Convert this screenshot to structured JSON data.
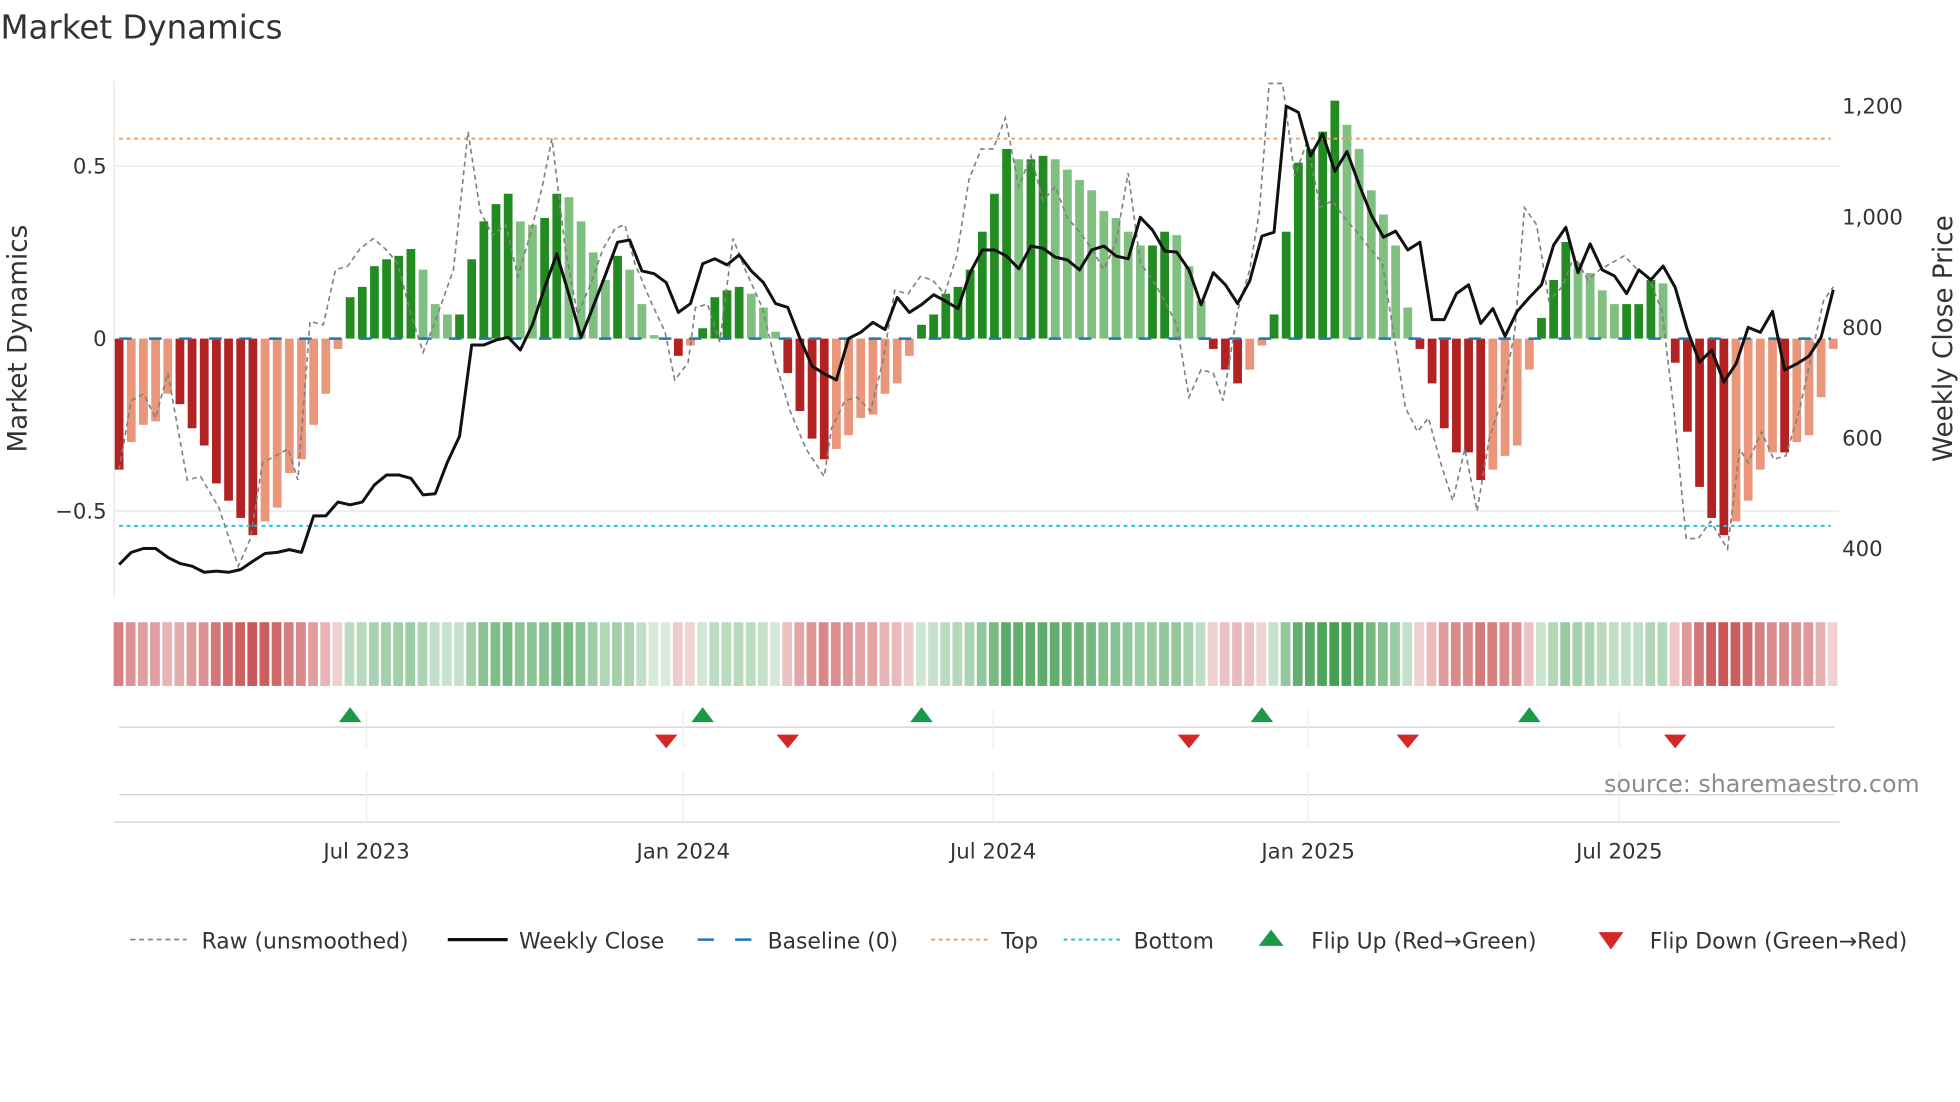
{
  "chart_data": {
    "type": "bar",
    "title": "Market Dynamics",
    "ylabel": "Market Dynamics",
    "y2label": "Weekly Close Price",
    "ylim": [
      -0.76,
      0.75
    ],
    "y2lim": [
      370,
      1240
    ],
    "yticks": [
      {
        "v": 0.5,
        "label": "0.5"
      },
      {
        "v": 0,
        "label": "0"
      },
      {
        "v": -0.5,
        "label": "−0.5"
      }
    ],
    "y2ticks": [
      {
        "v": 400,
        "label": "400"
      },
      {
        "v": 600,
        "label": "600"
      },
      {
        "v": 800,
        "label": "800"
      },
      {
        "v": 1000,
        "label": "1,000"
      },
      {
        "v": 1200,
        "label": "1,200"
      }
    ],
    "xticks": [
      {
        "week": 20.35,
        "label": "Jul 2023"
      },
      {
        "week": 46.4,
        "label": "Jan 2024"
      },
      {
        "week": 71.9,
        "label": "Jul 2024"
      },
      {
        "week": 97.8,
        "label": "Jan 2025"
      },
      {
        "week": 123.4,
        "label": "Jul 2025"
      }
    ],
    "baseline": 0,
    "top": 0.58,
    "bottom": -0.543,
    "values": [
      -0.38,
      -0.3,
      -0.25,
      -0.24,
      -0.16,
      -0.19,
      -0.26,
      -0.31,
      -0.42,
      -0.47,
      -0.52,
      -0.57,
      -0.53,
      -0.49,
      -0.39,
      -0.35,
      -0.25,
      -0.16,
      -0.03,
      0.12,
      0.15,
      0.21,
      0.23,
      0.24,
      0.26,
      0.2,
      0.1,
      0.07,
      0.07,
      0.23,
      0.34,
      0.39,
      0.42,
      0.34,
      0.33,
      0.35,
      0.42,
      0.41,
      0.34,
      0.25,
      0.17,
      0.24,
      0.2,
      0.1,
      0.01,
      0.0,
      -0.05,
      -0.02,
      0.03,
      0.12,
      0.14,
      0.15,
      0.13,
      0.09,
      0.02,
      -0.1,
      -0.21,
      -0.29,
      -0.35,
      -0.32,
      -0.28,
      -0.23,
      -0.22,
      -0.16,
      -0.13,
      -0.05,
      0.04,
      0.07,
      0.13,
      0.15,
      0.2,
      0.31,
      0.42,
      0.55,
      0.52,
      0.52,
      0.53,
      0.52,
      0.49,
      0.46,
      0.43,
      0.37,
      0.35,
      0.31,
      0.27,
      0.27,
      0.31,
      0.3,
      0.21,
      0.11,
      -0.03,
      -0.09,
      -0.13,
      -0.09,
      -0.02,
      0.07,
      0.31,
      0.51,
      0.55,
      0.6,
      0.69,
      0.62,
      0.55,
      0.43,
      0.36,
      0.27,
      0.09,
      -0.03,
      -0.13,
      -0.26,
      -0.33,
      -0.33,
      -0.41,
      -0.38,
      -0.34,
      -0.31,
      -0.09,
      0.06,
      0.17,
      0.28,
      0.22,
      0.19,
      0.14,
      0.1,
      0.1,
      0.1,
      0.17,
      0.16,
      -0.07,
      -0.27,
      -0.43,
      -0.52,
      -0.57,
      -0.53,
      -0.47,
      -0.38,
      -0.33,
      -0.33,
      -0.3,
      -0.28,
      -0.17,
      -0.03
    ],
    "weekly_close": [
      371,
      393,
      400,
      400,
      384,
      373,
      368,
      357,
      359,
      357,
      362,
      377,
      391,
      393,
      398,
      393,
      459,
      459,
      484,
      479,
      484,
      515,
      533,
      533,
      527,
      497,
      499,
      556,
      603,
      768,
      768,
      777,
      782,
      759,
      805,
      872,
      933,
      859,
      782,
      838,
      895,
      954,
      958,
      902,
      897,
      881,
      827,
      843,
      915,
      924,
      913,
      931,
      902,
      881,
      843,
      836,
      780,
      730,
      716,
      705,
      780,
      791,
      809,
      796,
      854,
      827,
      841,
      859,
      847,
      834,
      899,
      940,
      940,
      929,
      906,
      947,
      943,
      927,
      922,
      904,
      940,
      947,
      929,
      924,
      999,
      976,
      938,
      936,
      904,
      841,
      899,
      877,
      843,
      884,
      965,
      972,
      1200,
      1189,
      1110,
      1150,
      1082,
      1118,
      1058,
      1003,
      963,
      974,
      940,
      954,
      814,
      814,
      861,
      877,
      807,
      834,
      784,
      829,
      854,
      877,
      949,
      981,
      899,
      951,
      904,
      893,
      861,
      904,
      886,
      911,
      872,
      795,
      737,
      759,
      701,
      734,
      800,
      791,
      829,
      723,
      734,
      748,
      782,
      868
    ],
    "raw": [
      [
        0,
        -0.38
      ],
      [
        1,
        -0.18
      ],
      [
        2,
        -0.16
      ],
      [
        3,
        -0.23
      ],
      [
        4,
        -0.1
      ],
      [
        5.6,
        -0.41
      ],
      [
        6.7,
        -0.4
      ],
      [
        8.2,
        -0.49
      ],
      [
        9.8,
        -0.66
      ],
      [
        10.8,
        -0.58
      ],
      [
        11.8,
        -0.36
      ],
      [
        13.9,
        -0.32
      ],
      [
        14.7,
        -0.41
      ],
      [
        15.7,
        0.05
      ],
      [
        16.8,
        0.04
      ],
      [
        17.8,
        0.2
      ],
      [
        18.8,
        0.21
      ],
      [
        19.8,
        0.26
      ],
      [
        20.9,
        0.29
      ],
      [
        21.9,
        0.26
      ],
      [
        22.9,
        0.22
      ],
      [
        24,
        0.07
      ],
      [
        25,
        -0.04
      ],
      [
        26,
        0.05
      ],
      [
        27.5,
        0.2
      ],
      [
        28.7,
        0.6
      ],
      [
        29.7,
        0.37
      ],
      [
        30.7,
        0.3
      ],
      [
        31.8,
        0.33
      ],
      [
        32.8,
        0.18
      ],
      [
        33.8,
        0.3
      ],
      [
        34.8,
        0.44
      ],
      [
        35.6,
        0.58
      ],
      [
        36.7,
        0.26
      ],
      [
        37.7,
        0.07
      ],
      [
        38.7,
        0.15
      ],
      [
        39.8,
        0.26
      ],
      [
        40.8,
        0.32
      ],
      [
        41.6,
        0.33
      ],
      [
        42.4,
        0.22
      ],
      [
        43.7,
        0.11
      ],
      [
        44.9,
        0.02
      ],
      [
        45.7,
        -0.12
      ],
      [
        46.8,
        -0.07
      ],
      [
        47.4,
        0.09
      ],
      [
        48.4,
        0.1
      ],
      [
        49.4,
        -0.01
      ],
      [
        50.5,
        0.29
      ],
      [
        51.5,
        0.2
      ],
      [
        52.9,
        0.09
      ],
      [
        54,
        -0.07
      ],
      [
        55.2,
        -0.21
      ],
      [
        56.5,
        -0.32
      ],
      [
        58,
        -0.4
      ],
      [
        58.6,
        -0.26
      ],
      [
        59.7,
        -0.18
      ],
      [
        60.7,
        -0.17
      ],
      [
        61.8,
        -0.21
      ],
      [
        62.8,
        -0.07
      ],
      [
        63.8,
        0.14
      ],
      [
        64.9,
        0.13
      ],
      [
        65.9,
        0.18
      ],
      [
        66.9,
        0.17
      ],
      [
        67.9,
        0.13
      ],
      [
        68.9,
        0.24
      ],
      [
        69.9,
        0.46
      ],
      [
        70.9,
        0.55
      ],
      [
        71.9,
        0.55
      ],
      [
        72.9,
        0.64
      ],
      [
        74,
        0.44
      ],
      [
        75,
        0.53
      ],
      [
        76,
        0.4
      ],
      [
        77,
        0.44
      ],
      [
        78,
        0.35
      ],
      [
        79,
        0.31
      ],
      [
        80,
        0.26
      ],
      [
        81,
        0.2
      ],
      [
        82,
        0.28
      ],
      [
        83,
        0.48
      ],
      [
        84,
        0.22
      ],
      [
        85,
        0.17
      ],
      [
        86,
        0.11
      ],
      [
        87,
        0.04
      ],
      [
        88,
        -0.17
      ],
      [
        89,
        -0.09
      ],
      [
        90,
        -0.1
      ],
      [
        90.8,
        -0.18
      ],
      [
        92,
        0.08
      ],
      [
        93,
        0.2
      ],
      [
        93.8,
        0.37
      ],
      [
        94.6,
        0.74
      ],
      [
        95.7,
        0.74
      ],
      [
        96.7,
        0.47
      ],
      [
        97.7,
        0.57
      ],
      [
        98.8,
        0.38
      ],
      [
        99.8,
        0.4
      ],
      [
        100.8,
        0.35
      ],
      [
        101.8,
        0.31
      ],
      [
        102.9,
        0.26
      ],
      [
        103.9,
        0.22
      ],
      [
        104.9,
        0
      ],
      [
        105.8,
        -0.2
      ],
      [
        106.8,
        -0.27
      ],
      [
        107.7,
        -0.23
      ],
      [
        108.7,
        -0.36
      ],
      [
        109.7,
        -0.47
      ],
      [
        110.7,
        -0.32
      ],
      [
        111.7,
        -0.5
      ],
      [
        112.7,
        -0.29
      ],
      [
        113.7,
        -0.18
      ],
      [
        114.8,
        0.02
      ],
      [
        115.6,
        0.38
      ],
      [
        116.6,
        0.33
      ],
      [
        117.6,
        0.11
      ],
      [
        118.7,
        0.15
      ],
      [
        119.7,
        0.24
      ],
      [
        120.8,
        0.17
      ],
      [
        121.8,
        0.2
      ],
      [
        122.8,
        0.22
      ],
      [
        123.8,
        0.24
      ],
      [
        124.9,
        0.2
      ],
      [
        125.9,
        0.17
      ],
      [
        126.9,
        0.08
      ],
      [
        127.9,
        -0.21
      ],
      [
        128.9,
        -0.58
      ],
      [
        129.9,
        -0.58
      ],
      [
        130.9,
        -0.53
      ],
      [
        132.3,
        -0.61
      ],
      [
        133.3,
        -0.32
      ],
      [
        134,
        -0.36
      ],
      [
        135.1,
        -0.27
      ],
      [
        136.1,
        -0.35
      ],
      [
        137.1,
        -0.34
      ],
      [
        138.2,
        -0.21
      ],
      [
        139.2,
        -0.05
      ],
      [
        140.2,
        0.11
      ],
      [
        141,
        0.15
      ]
    ],
    "flip_up_weeks": [
      19,
      48,
      66,
      94,
      116
    ],
    "flip_down_weeks": [
      45,
      55,
      88,
      106,
      128
    ],
    "legend": [
      "Raw (unsmoothed)",
      "Weekly Close",
      "Baseline (0)",
      "Top",
      "Bottom",
      "Flip Up (Red→Green)",
      "Flip Down (Green→Red)"
    ],
    "legend_placement": "bottom",
    "source": "source: sharemaestro.com",
    "colors": {
      "strong_green": "#228b22",
      "weak_green": "#7fbf7f",
      "strong_red": "#b22222",
      "weak_red": "#e9967a",
      "close": "#111111",
      "raw": "#808080",
      "baseline": "#1f77b4",
      "top": "#f0a060",
      "bottom": "#22c3d6",
      "flip_up": "#1a9a44",
      "flip_down": "#d62728"
    }
  }
}
